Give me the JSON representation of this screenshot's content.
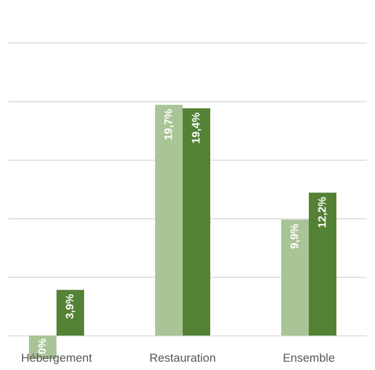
{
  "chart_data": {
    "type": "bar",
    "title": "",
    "xlabel": "",
    "ylabel": "",
    "categories": [
      "Hébergement",
      "Restauration",
      "Ensemble"
    ],
    "series": [
      {
        "values": [
          -2.0,
          19.7,
          9.9
        ],
        "labels": [
          "-2,0%",
          "19,7%",
          "9,9%"
        ],
        "color": "#a9c496"
      },
      {
        "values": [
          3.9,
          19.4,
          12.2
        ],
        "labels": [
          "3,9%",
          "19,4%",
          "12,2%"
        ],
        "color": "#548235"
      }
    ],
    "ylim": [
      -5,
      25
    ],
    "gridlines": [
      0,
      5,
      10,
      15,
      20,
      25
    ],
    "grid": true,
    "legend": "none",
    "colors": {
      "grid": "#d9d9d9",
      "category_text": "#555555",
      "data_label_text": "#ffffff"
    }
  }
}
